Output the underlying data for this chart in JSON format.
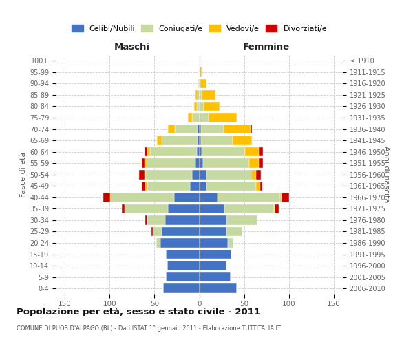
{
  "age_groups": [
    "0-4",
    "5-9",
    "10-14",
    "15-19",
    "20-24",
    "25-29",
    "30-34",
    "35-39",
    "40-44",
    "45-49",
    "50-54",
    "55-59",
    "60-64",
    "65-69",
    "70-74",
    "75-79",
    "80-84",
    "85-89",
    "90-94",
    "95-99",
    "100+"
  ],
  "birth_years": [
    "2006-2010",
    "2001-2005",
    "1996-2000",
    "1991-1995",
    "1986-1990",
    "1981-1985",
    "1976-1980",
    "1971-1975",
    "1966-1970",
    "1961-1965",
    "1956-1960",
    "1951-1955",
    "1946-1950",
    "1941-1945",
    "1936-1940",
    "1931-1935",
    "1926-1930",
    "1921-1925",
    "1916-1920",
    "1911-1915",
    "≤ 1910"
  ],
  "males": {
    "celibi": [
      40,
      37,
      36,
      37,
      43,
      42,
      38,
      35,
      28,
      10,
      8,
      4,
      3,
      2,
      2,
      0,
      0,
      0,
      0,
      0,
      0
    ],
    "coniugati": [
      0,
      0,
      0,
      0,
      5,
      10,
      20,
      48,
      70,
      48,
      52,
      55,
      52,
      40,
      25,
      8,
      3,
      2,
      1,
      0,
      0
    ],
    "vedovi": [
      0,
      0,
      0,
      0,
      0,
      0,
      0,
      0,
      1,
      2,
      1,
      2,
      3,
      5,
      8,
      5,
      3,
      2,
      0,
      0,
      0
    ],
    "divorziati": [
      0,
      0,
      0,
      0,
      0,
      1,
      2,
      3,
      8,
      4,
      6,
      3,
      3,
      0,
      0,
      0,
      0,
      0,
      0,
      0,
      0
    ]
  },
  "females": {
    "nubili": [
      42,
      35,
      30,
      36,
      32,
      30,
      30,
      28,
      20,
      8,
      8,
      4,
      3,
      2,
      2,
      0,
      0,
      0,
      0,
      0,
      0
    ],
    "coniugate": [
      0,
      0,
      0,
      0,
      6,
      18,
      35,
      55,
      70,
      55,
      50,
      52,
      48,
      35,
      25,
      10,
      5,
      3,
      1,
      0,
      0
    ],
    "vedove": [
      0,
      0,
      0,
      0,
      0,
      0,
      0,
      1,
      2,
      5,
      5,
      10,
      15,
      22,
      30,
      32,
      18,
      15,
      7,
      3,
      0
    ],
    "divorziate": [
      0,
      0,
      0,
      0,
      0,
      0,
      0,
      5,
      8,
      2,
      6,
      5,
      5,
      0,
      2,
      0,
      0,
      0,
      0,
      0,
      0
    ]
  },
  "colors": {
    "celibi": "#4472c4",
    "coniugati": "#c5d9a0",
    "vedovi": "#ffc000",
    "divorziati": "#cc0000"
  },
  "title": "Popolazione per età, sesso e stato civile - 2011",
  "subtitle": "COMUNE DI PUOS D'ALPAGO (BL) - Dati ISTAT 1° gennaio 2011 - Elaborazione TUTTITALIA.IT",
  "label_maschi": "Maschi",
  "label_femmine": "Femmine",
  "ylabel_left": "Fasce di età",
  "ylabel_right": "Anni di nascita",
  "legend_labels": [
    "Celibi/Nubili",
    "Coniugati/e",
    "Vedovi/e",
    "Divorziati/e"
  ],
  "xlim": 160,
  "bg_color": "#ffffff",
  "grid_color": "#cccccc"
}
